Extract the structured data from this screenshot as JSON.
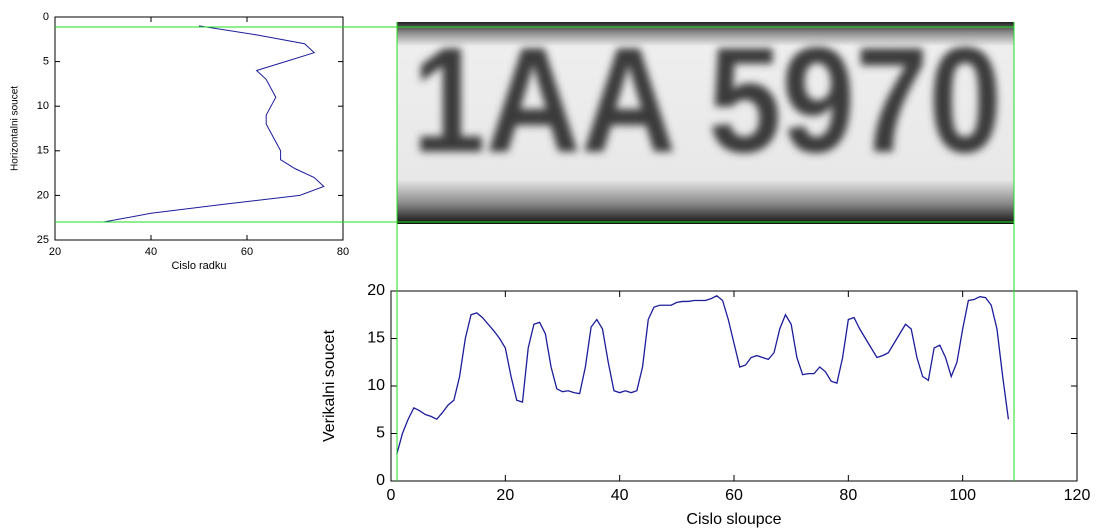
{
  "chart_data": [
    {
      "type": "hline",
      "ylabel": "Horizontalni soucet",
      "xlabel": "Cislo radku",
      "color": "#1c1c9c",
      "rows": [
        1,
        2,
        3,
        4,
        5,
        6,
        7,
        8,
        9,
        10,
        11,
        12,
        13,
        14,
        15,
        16,
        17,
        18,
        19,
        20,
        21,
        22,
        23
      ],
      "values": [
        50,
        62,
        72,
        74,
        68,
        62,
        64,
        65,
        66,
        65,
        64,
        64,
        65,
        66,
        67,
        67,
        70,
        74,
        76,
        71,
        55,
        40,
        30
      ],
      "xlim": [
        20,
        80
      ],
      "xticks": [
        20,
        40,
        60,
        80
      ],
      "ylim": [
        0,
        25
      ],
      "yticks": [
        0,
        5,
        10,
        15,
        20,
        25
      ]
    },
    {
      "type": "line",
      "ylabel": "Verikalni soucet",
      "xlabel": "Cislo sloupce",
      "color": "#1c1c9c",
      "x": [
        1,
        2,
        3,
        4,
        5,
        6,
        7,
        8,
        9,
        10,
        11,
        12,
        13,
        14,
        15,
        16,
        17,
        18,
        19,
        20,
        21,
        22,
        23,
        24,
        25,
        26,
        27,
        28,
        29,
        30,
        31,
        32,
        33,
        34,
        35,
        36,
        37,
        38,
        39,
        40,
        41,
        42,
        43,
        44,
        45,
        46,
        47,
        48,
        49,
        50,
        51,
        52,
        53,
        54,
        55,
        56,
        57,
        58,
        59,
        60,
        61,
        62,
        63,
        64,
        65,
        66,
        67,
        68,
        69,
        70,
        71,
        72,
        73,
        74,
        75,
        76,
        77,
        78,
        79,
        80,
        81,
        82,
        83,
        84,
        85,
        86,
        87,
        88,
        89,
        90,
        91,
        92,
        93,
        94,
        95,
        96,
        97,
        98,
        99,
        100,
        101,
        102,
        103,
        104,
        105,
        106,
        107,
        108
      ],
      "values": [
        2.8,
        5,
        6.5,
        7.7,
        7.4,
        7,
        6.8,
        6.5,
        7.2,
        8,
        8.5,
        11,
        15,
        17.5,
        17.7,
        17.2,
        16.5,
        15.8,
        15,
        14,
        11,
        8.5,
        8.3,
        14,
        16.5,
        16.7,
        15.5,
        12,
        9.7,
        9.4,
        9.5,
        9.3,
        9.2,
        12,
        16.2,
        17,
        16,
        12.5,
        9.5,
        9.3,
        9.5,
        9.3,
        9.5,
        12,
        17,
        18.3,
        18.5,
        18.5,
        18.5,
        18.8,
        18.9,
        18.9,
        19,
        19,
        19,
        19.2,
        19.5,
        19,
        17,
        14.5,
        12,
        12.2,
        13,
        13.2,
        13,
        12.8,
        13.5,
        16,
        17.5,
        16.5,
        13,
        11.2,
        11.3,
        11.3,
        12,
        11.5,
        10.5,
        10.3,
        13,
        17,
        17.2,
        16,
        15,
        14,
        13,
        13.2,
        13.5,
        14.5,
        15.5,
        16.5,
        16,
        13,
        11,
        10.6,
        14,
        14.3,
        13,
        11,
        12.5,
        16,
        19,
        19.1,
        19.4,
        19.3,
        18.5,
        16,
        11,
        6.5
      ],
      "xlim": [
        0,
        120
      ],
      "xticks": [
        0,
        20,
        40,
        60,
        80,
        100,
        120
      ],
      "ylim": [
        0,
        20
      ],
      "yticks": [
        0,
        5,
        10,
        15,
        20
      ]
    }
  ],
  "image": {
    "text": "1AA 5970"
  }
}
